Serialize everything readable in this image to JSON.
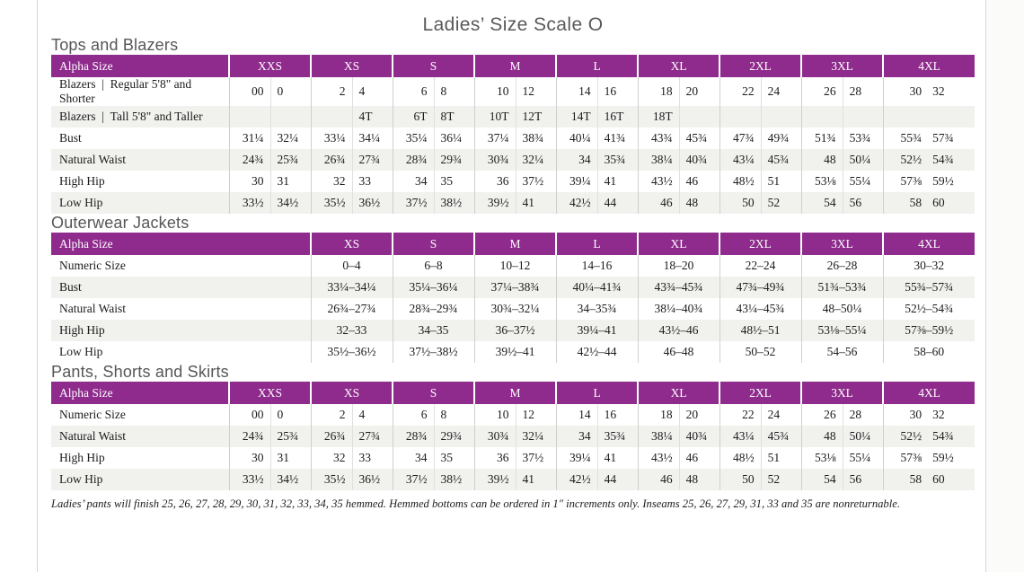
{
  "page": {
    "title": "Ladies’ Size Scale O",
    "footnote": "Ladies’ pants will finish 25, 26, 27, 28, 29, 30, 31, 32, 33, 34, 35 hemmed. Hemmed bottoms can be ordered in 1\" increments only. Inseams 25, 26, 27, 29, 31, 33 and 35 are nonreturnable."
  },
  "colors": {
    "accent_purple": "#8e2b8c",
    "row_stripe": "#f1f1ee",
    "heading_gray": "#565656"
  },
  "tables": [
    {
      "section_title": "Tops and Blazers",
      "layout": "paired",
      "header": [
        "Alpha Size",
        "XXS",
        "XS",
        "S",
        "M",
        "L",
        "XL",
        "2XL",
        "3XL",
        "4XL"
      ],
      "rows": [
        {
          "label": "Blazers  |  Regular 5'8\" and Shorter",
          "values": [
            "00",
            "0",
            "2",
            "4",
            "6",
            "8",
            "10",
            "12",
            "14",
            "16",
            "18",
            "20",
            "22",
            "24",
            "26",
            "28",
            "30",
            "32"
          ]
        },
        {
          "label": "Blazers  |  Tall 5'8\" and Taller",
          "values": [
            "",
            "",
            "",
            "4T",
            "6T",
            "8T",
            "10T",
            "12T",
            "14T",
            "16T",
            "18T",
            "",
            "",
            "",
            "",
            "",
            "",
            ""
          ]
        },
        {
          "label": "Bust",
          "values": [
            "31¼",
            "32¼",
            "33¼",
            "34¼",
            "35¼",
            "36¼",
            "37¼",
            "38¾",
            "40¼",
            "41¾",
            "43¾",
            "45¾",
            "47¾",
            "49¾",
            "51¾",
            "53¾",
            "55¾",
            "57¾"
          ]
        },
        {
          "label": "Natural Waist",
          "values": [
            "24¾",
            "25¾",
            "26¾",
            "27¾",
            "28¾",
            "29¾",
            "30¾",
            "32¼",
            "34",
            "35¾",
            "38¼",
            "40¾",
            "43¼",
            "45¾",
            "48",
            "50¼",
            "52½",
            "54¾"
          ]
        },
        {
          "label": "High Hip",
          "values": [
            "30",
            "31",
            "32",
            "33",
            "34",
            "35",
            "36",
            "37½",
            "39¼",
            "41",
            "43½",
            "46",
            "48½",
            "51",
            "53⅛",
            "55¼",
            "57⅜",
            "59½"
          ]
        },
        {
          "label": "Low Hip",
          "values": [
            "33½",
            "34½",
            "35½",
            "36½",
            "37½",
            "38½",
            "39½",
            "41",
            "42½",
            "44",
            "46",
            "48",
            "50",
            "52",
            "54",
            "56",
            "58",
            "60"
          ]
        }
      ]
    },
    {
      "section_title": "Outerwear Jackets",
      "layout": "range",
      "header": [
        "Alpha Size",
        "XS",
        "S",
        "M",
        "L",
        "XL",
        "2XL",
        "3XL",
        "4XL"
      ],
      "rows": [
        {
          "label": "Numeric Size",
          "values": [
            "0–4",
            "6–8",
            "10–12",
            "14–16",
            "18–20",
            "22–24",
            "26–28",
            "30–32"
          ]
        },
        {
          "label": "Bust",
          "values": [
            "33¼–34¼",
            "35¼–36¼",
            "37¼–38¾",
            "40¼–41¾",
            "43¾–45¾",
            "47¾–49¾",
            "51¾–53¾",
            "55¾–57¾"
          ]
        },
        {
          "label": "Natural Waist",
          "values": [
            "26¾–27¾",
            "28¾–29¾",
            "30¾–32¼",
            "34–35¾",
            "38¼–40¾",
            "43¼–45¾",
            "48–50¼",
            "52½–54¾"
          ]
        },
        {
          "label": "High Hip",
          "values": [
            "32–33",
            "34–35",
            "36–37½",
            "39¼–41",
            "43½–46",
            "48½–51",
            "53⅛–55¼",
            "57⅜–59½"
          ]
        },
        {
          "label": "Low Hip",
          "values": [
            "35½–36½",
            "37½–38½",
            "39½–41",
            "42½–44",
            "46–48",
            "50–52",
            "54–56",
            "58–60"
          ]
        }
      ]
    },
    {
      "section_title": "Pants, Shorts and Skirts",
      "layout": "paired",
      "header": [
        "Alpha Size",
        "XXS",
        "XS",
        "S",
        "M",
        "L",
        "XL",
        "2XL",
        "3XL",
        "4XL"
      ],
      "rows": [
        {
          "label": "Numeric Size",
          "values": [
            "00",
            "0",
            "2",
            "4",
            "6",
            "8",
            "10",
            "12",
            "14",
            "16",
            "18",
            "20",
            "22",
            "24",
            "26",
            "28",
            "30",
            "32"
          ]
        },
        {
          "label": "Natural Waist",
          "values": [
            "24¾",
            "25¾",
            "26¾",
            "27¾",
            "28¾",
            "29¾",
            "30¾",
            "32¼",
            "34",
            "35¾",
            "38¼",
            "40¾",
            "43¼",
            "45¾",
            "48",
            "50¼",
            "52½",
            "54¾"
          ]
        },
        {
          "label": "High Hip",
          "values": [
            "30",
            "31",
            "32",
            "33",
            "34",
            "35",
            "36",
            "37½",
            "39¼",
            "41",
            "43½",
            "46",
            "48½",
            "51",
            "53⅛",
            "55¼",
            "57⅜",
            "59½"
          ]
        },
        {
          "label": "Low Hip",
          "values": [
            "33½",
            "34½",
            "35½",
            "36½",
            "37½",
            "38½",
            "39½",
            "41",
            "42½",
            "44",
            "46",
            "48",
            "50",
            "52",
            "54",
            "56",
            "58",
            "60"
          ]
        }
      ]
    }
  ]
}
